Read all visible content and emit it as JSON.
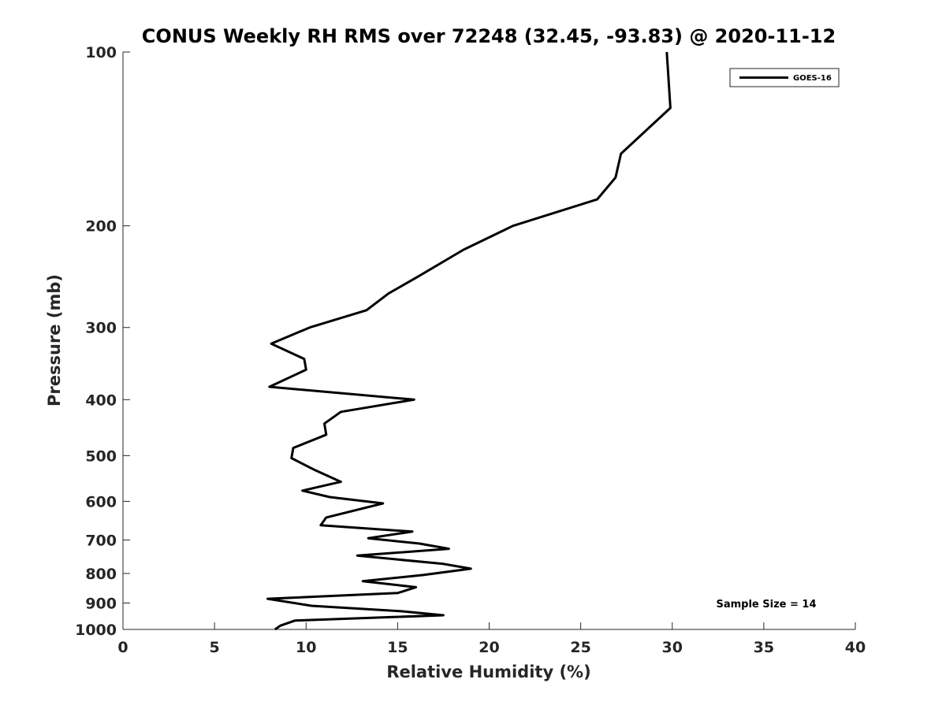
{
  "chart_data": {
    "type": "line",
    "title": "CONUS Weekly RH RMS over 72248 (32.45, -93.83) @ 2020-11-12",
    "xlabel": "Relative Humidity (%)",
    "ylabel": "Pressure (mb)",
    "xlim": [
      0,
      40
    ],
    "ylim": [
      100,
      1000
    ],
    "y_scale": "log",
    "y_reversed": true,
    "x_ticks": [
      0,
      5,
      10,
      15,
      20,
      25,
      30,
      35,
      40
    ],
    "y_ticks": [
      100,
      200,
      300,
      400,
      500,
      600,
      700,
      800,
      900,
      1000
    ],
    "grid": false,
    "legend_position": "top-right",
    "annotation": "Sample Size = 14",
    "series": [
      {
        "name": "GOES-16",
        "color": "#000000",
        "points": [
          [
            29.7,
            100
          ],
          [
            29.9,
            125
          ],
          [
            27.2,
            150
          ],
          [
            26.9,
            165
          ],
          [
            25.9,
            180
          ],
          [
            21.3,
            200
          ],
          [
            18.6,
            220
          ],
          [
            16.1,
            245
          ],
          [
            14.5,
            262
          ],
          [
            13.3,
            280
          ],
          [
            10.2,
            300
          ],
          [
            8.1,
            320
          ],
          [
            9.9,
            340
          ],
          [
            10.0,
            355
          ],
          [
            8.0,
            380
          ],
          [
            15.9,
            400
          ],
          [
            11.9,
            420
          ],
          [
            11.0,
            440
          ],
          [
            11.1,
            460
          ],
          [
            9.3,
            485
          ],
          [
            9.2,
            505
          ],
          [
            10.5,
            530
          ],
          [
            11.9,
            555
          ],
          [
            9.8,
            575
          ],
          [
            11.3,
            590
          ],
          [
            14.2,
            605
          ],
          [
            11.1,
            640
          ],
          [
            10.8,
            660
          ],
          [
            15.8,
            677
          ],
          [
            13.4,
            695
          ],
          [
            16.2,
            710
          ],
          [
            17.8,
            725
          ],
          [
            12.8,
            745
          ],
          [
            17.5,
            770
          ],
          [
            19.0,
            785
          ],
          [
            16.4,
            805
          ],
          [
            13.1,
            825
          ],
          [
            16.0,
            845
          ],
          [
            15.0,
            865
          ],
          [
            7.9,
            885
          ],
          [
            10.3,
            910
          ],
          [
            15.2,
            930
          ],
          [
            17.5,
            945
          ],
          [
            9.4,
            965
          ],
          [
            8.6,
            985
          ],
          [
            8.3,
            1000
          ]
        ]
      }
    ]
  }
}
